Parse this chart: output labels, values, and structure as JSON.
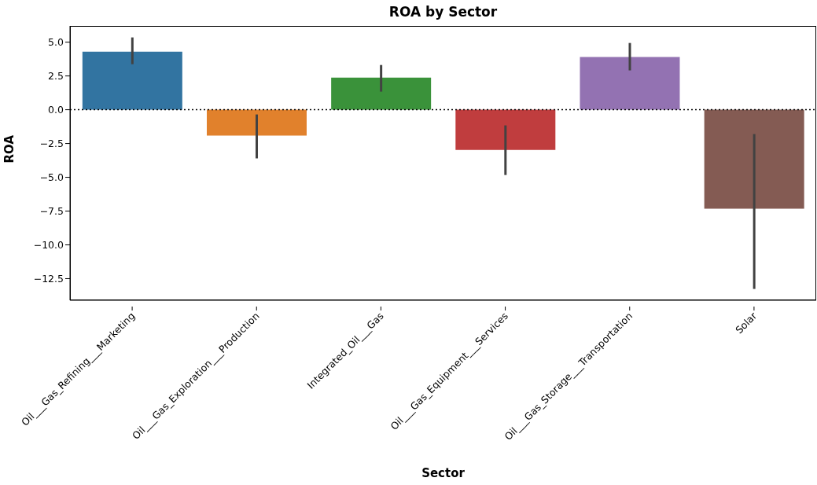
{
  "chart_data": {
    "type": "bar",
    "title": "ROA by Sector",
    "xlabel": "Sector",
    "ylabel": "ROA",
    "categories": [
      "Oil___Gas_Refining___Marketing",
      "Oil___Gas_Exploration___Production",
      "Integrated_Oil___Gas",
      "Oil___Gas_Equipment___Services",
      "Oil___Gas_Storage___Transportation",
      "Solar"
    ],
    "values": [
      4.3,
      -1.92,
      2.38,
      -2.97,
      3.9,
      -7.33
    ],
    "colors": [
      "#3274a1",
      "#e1812c",
      "#3a923a",
      "#c03d3e",
      "#9372b2",
      "#845b53"
    ],
    "errors": [
      [
        3.37,
        5.35
      ],
      [
        -3.6,
        -0.35
      ],
      [
        1.34,
        3.31
      ],
      [
        -4.83,
        -1.16
      ],
      [
        2.91,
        4.94
      ],
      [
        -13.26,
        -1.8
      ]
    ],
    "ylim": [
      -14.1,
      6.2
    ],
    "yticks": [
      {
        "value": -12.5,
        "label": "−12.5"
      },
      {
        "value": -10,
        "label": "−10.0"
      },
      {
        "value": -7.5,
        "label": "−7.5"
      },
      {
        "value": -5,
        "label": "−5.0"
      },
      {
        "value": -2.5,
        "label": "−2.5"
      },
      {
        "value": 0,
        "label": "0.0"
      },
      {
        "value": 2.5,
        "label": "2.5"
      },
      {
        "value": 5,
        "label": "5.0"
      }
    ],
    "ref_lines": [
      {
        "axis": "y",
        "value": 0,
        "color": "#000000",
        "line_style": "dotted"
      }
    ],
    "grid": false,
    "legend": false
  }
}
